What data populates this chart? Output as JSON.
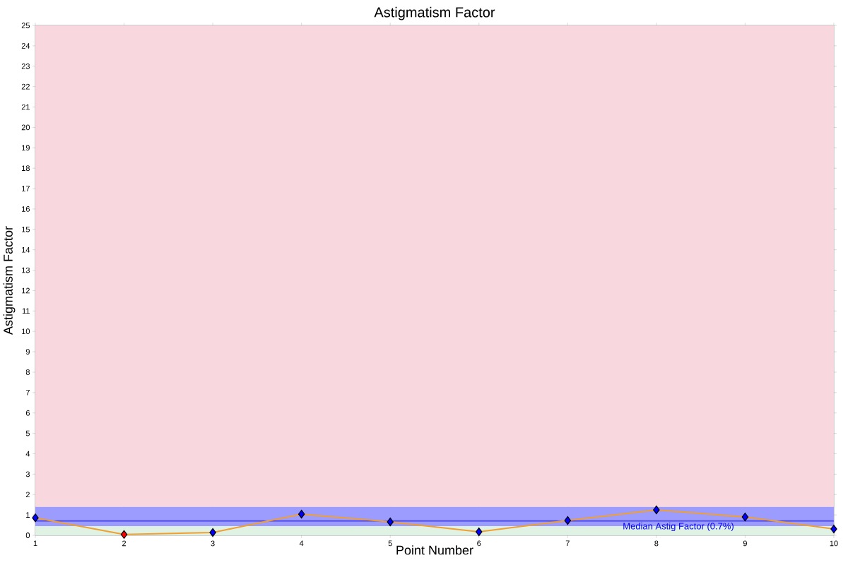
{
  "chart_data": {
    "type": "line",
    "title": "Astigmatism Factor",
    "xlabel": "Point Number",
    "ylabel": "Astigmatism Factor",
    "x": [
      1,
      2,
      3,
      4,
      5,
      6,
      7,
      8,
      9,
      10
    ],
    "series": [
      {
        "color": "#f0a030",
        "colors": [
          "#0000ff",
          "#ff0000",
          "#0000ff",
          "#0000ff",
          "#0000ff",
          "#0000ff",
          "#0000ff",
          "#0000ff",
          "#0000ff",
          "#0000ff"
        ],
        "values": [
          0.86,
          0.04,
          0.14,
          1.04,
          0.66,
          0.17,
          0.73,
          1.25,
          0.9,
          0.31
        ]
      }
    ],
    "xlim": [
      1,
      10
    ],
    "xticks": [
      1,
      2,
      3,
      4,
      5,
      6,
      7,
      8,
      9,
      10
    ],
    "ylim": [
      0,
      25
    ],
    "yticks": [
      0,
      1,
      2,
      3,
      4,
      5,
      6,
      7,
      8,
      9,
      10,
      11,
      12,
      13,
      14,
      15,
      16,
      17,
      18,
      19,
      20,
      21,
      22,
      23,
      24,
      25
    ],
    "bands": [
      {
        "axis": "y",
        "from": 0,
        "to": 0.45,
        "color": "#dff2e4"
      },
      {
        "axis": "y",
        "from": 0.45,
        "to": 1.4,
        "color": "#9c9cff"
      },
      {
        "axis": "y",
        "from": 1.4,
        "to": 25,
        "color": "#f8d7df"
      }
    ],
    "ref_lines": [
      {
        "axis": "y",
        "value": 0.7,
        "label": "Median Astig Factor (0.7%)",
        "color": "#0000ff"
      }
    ],
    "grid": true,
    "marker": "diamond",
    "line_style": "solid"
  }
}
